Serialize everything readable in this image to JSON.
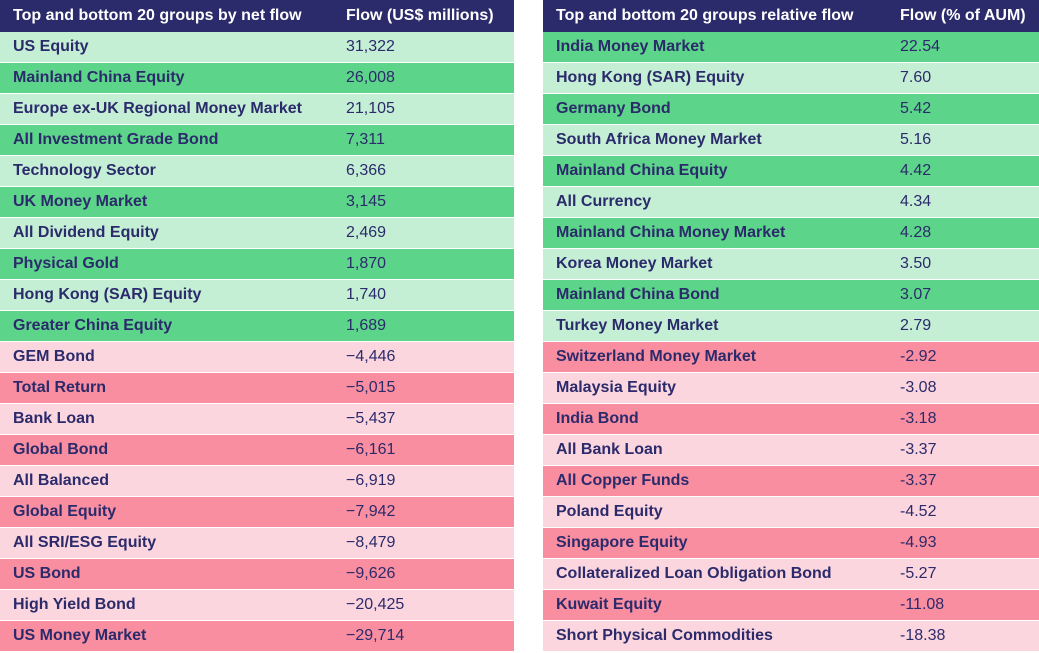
{
  "left_table": {
    "header": {
      "group": "Top and bottom 20 groups by net flow",
      "value": "Flow (US$ millions)"
    },
    "rows": [
      {
        "name": "US Equity",
        "value": "31,322",
        "tone": "pos-light"
      },
      {
        "name": "Mainland China Equity",
        "value": "26,008",
        "tone": "pos-dark"
      },
      {
        "name": "Europe ex-UK Regional Money Market",
        "value": "21,105",
        "tone": "pos-light"
      },
      {
        "name": "All Investment Grade Bond",
        "value": "7,311",
        "tone": "pos-dark"
      },
      {
        "name": "Technology Sector",
        "value": "6,366",
        "tone": "pos-light"
      },
      {
        "name": "UK Money Market",
        "value": "3,145",
        "tone": "pos-dark"
      },
      {
        "name": "All Dividend Equity",
        "value": "2,469",
        "tone": "pos-light"
      },
      {
        "name": "Physical Gold",
        "value": "1,870",
        "tone": "pos-dark"
      },
      {
        "name": "Hong Kong (SAR) Equity",
        "value": "1,740",
        "tone": "pos-light"
      },
      {
        "name": "Greater China Equity",
        "value": "1,689",
        "tone": "pos-dark"
      },
      {
        "name": "GEM Bond",
        "value": "−4,446",
        "tone": "neg-light"
      },
      {
        "name": "Total Return",
        "value": "−5,015",
        "tone": "neg-dark"
      },
      {
        "name": "Bank Loan",
        "value": "−5,437",
        "tone": "neg-light"
      },
      {
        "name": "Global Bond",
        "value": "−6,161",
        "tone": "neg-dark"
      },
      {
        "name": "All Balanced",
        "value": "−6,919",
        "tone": "neg-light"
      },
      {
        "name": "Global Equity",
        "value": "−7,942",
        "tone": "neg-dark"
      },
      {
        "name": "All SRI/ESG Equity",
        "value": "−8,479",
        "tone": "neg-light"
      },
      {
        "name": "US Bond",
        "value": "−9,626",
        "tone": "neg-dark"
      },
      {
        "name": "High Yield Bond",
        "value": "−20,425",
        "tone": "neg-light"
      },
      {
        "name": "US Money Market",
        "value": "−29,714",
        "tone": "neg-dark"
      }
    ]
  },
  "right_table": {
    "header": {
      "group": "Top and bottom 20 groups relative flow",
      "value": "Flow (% of AUM)"
    },
    "rows": [
      {
        "name": "India Money Market",
        "value": "22.54",
        "tone": "pos-dark"
      },
      {
        "name": "Hong Kong (SAR) Equity",
        "value": "7.60",
        "tone": "pos-light"
      },
      {
        "name": "Germany Bond",
        "value": "5.42",
        "tone": "pos-dark"
      },
      {
        "name": "South Africa Money Market",
        "value": "5.16",
        "tone": "pos-light"
      },
      {
        "name": "Mainland China Equity",
        "value": "4.42",
        "tone": "pos-dark"
      },
      {
        "name": "All Currency",
        "value": "4.34",
        "tone": "pos-light"
      },
      {
        "name": "Mainland China Money Market",
        "value": "4.28",
        "tone": "pos-dark"
      },
      {
        "name": "Korea Money Market",
        "value": "3.50",
        "tone": "pos-light"
      },
      {
        "name": "Mainland China Bond",
        "value": "3.07",
        "tone": "pos-dark"
      },
      {
        "name": "Turkey Money Market",
        "value": "2.79",
        "tone": "pos-light"
      },
      {
        "name": "Switzerland Money Market",
        "value": "-2.92",
        "tone": "neg-dark"
      },
      {
        "name": "Malaysia Equity",
        "value": "-3.08",
        "tone": "neg-light"
      },
      {
        "name": "India Bond",
        "value": "-3.18",
        "tone": "neg-dark"
      },
      {
        "name": "All Bank Loan",
        "value": "-3.37",
        "tone": "neg-light"
      },
      {
        "name": "All Copper Funds",
        "value": "-3.37",
        "tone": "neg-dark"
      },
      {
        "name": "Poland Equity",
        "value": "-4.52",
        "tone": "neg-light"
      },
      {
        "name": "Singapore Equity",
        "value": "-4.93",
        "tone": "neg-dark"
      },
      {
        "name": "Collateralized Loan Obligation Bond",
        "value": "-5.27",
        "tone": "neg-light"
      },
      {
        "name": "Kuwait Equity",
        "value": "-11.08",
        "tone": "neg-dark"
      },
      {
        "name": "Short Physical Commodities",
        "value": "-18.38",
        "tone": "neg-light"
      }
    ]
  },
  "colors": {
    "header_bg": "#2b2a6b",
    "text": "#2b2a6b",
    "positive_light": "#c4efd5",
    "positive_dark": "#5cd58a",
    "negative_light": "#fbd6de",
    "negative_dark": "#f98ea0"
  }
}
